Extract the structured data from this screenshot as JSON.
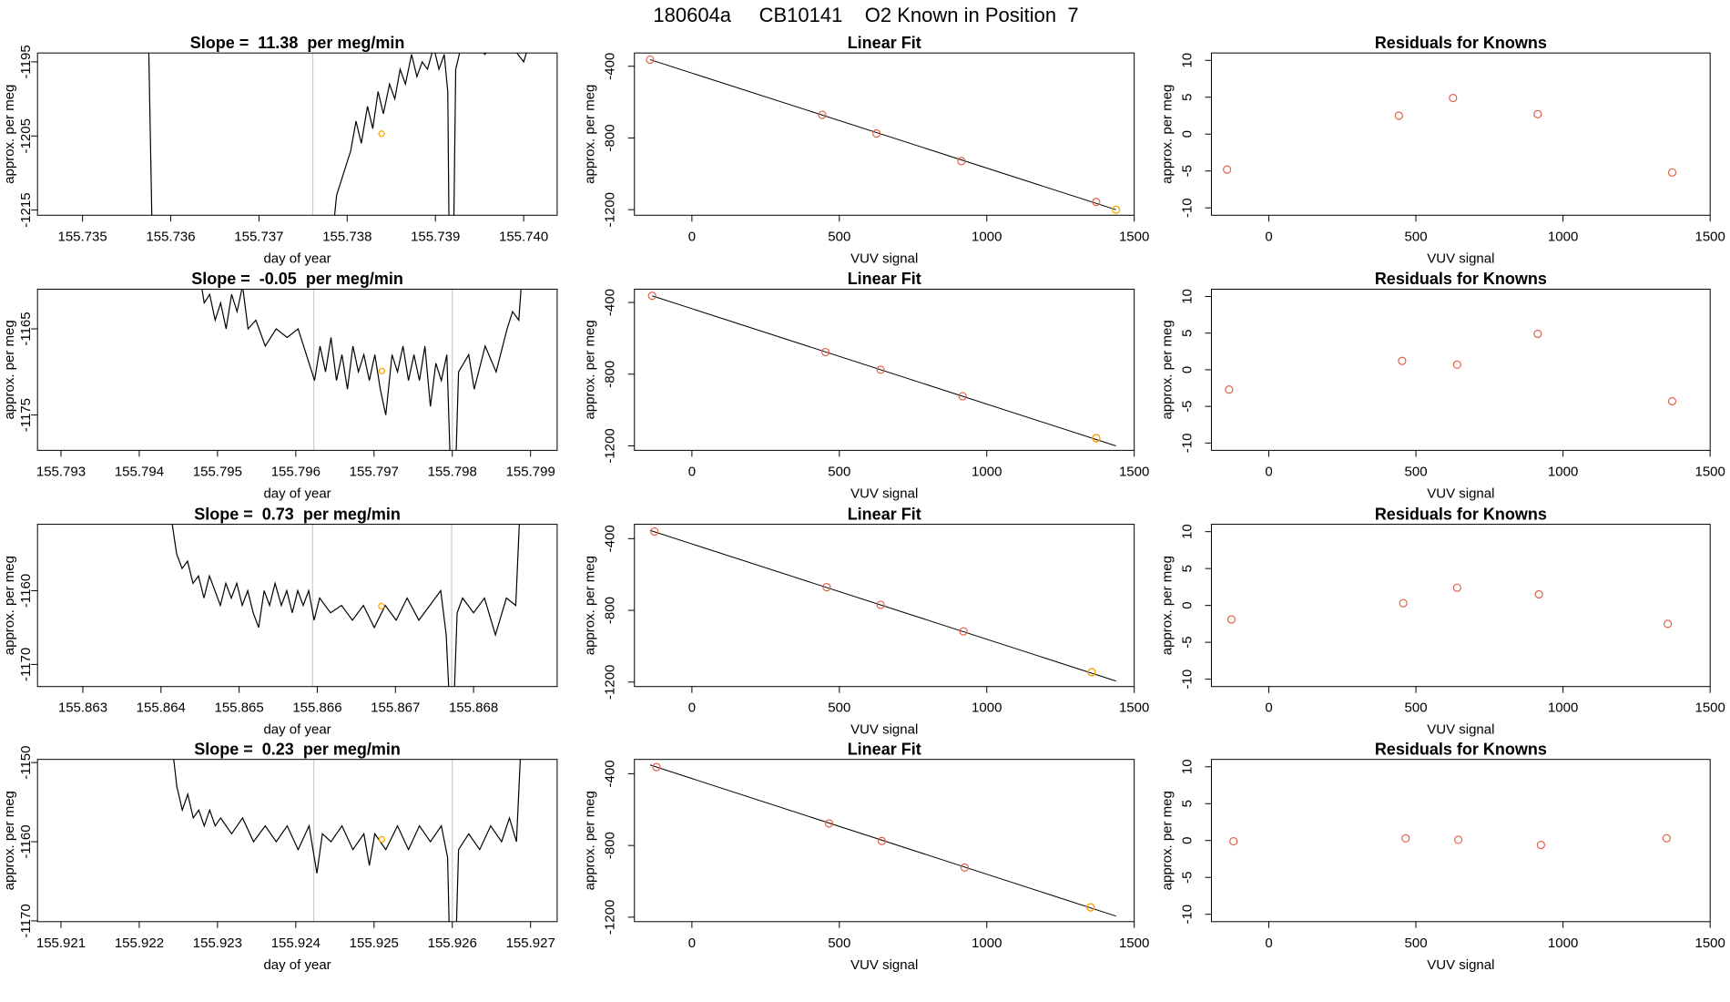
{
  "title": "180604a     CB10141    O2 Known in Position  7",
  "chart_data": [
    {
      "type": "line",
      "title": "Slope =  11.38  per meg/min",
      "xlabel": "day of year",
      "ylabel": "approx. per meg",
      "color": "#000000",
      "x": [
        155.73573,
        155.7358,
        155.73778,
        155.73788,
        155.73796,
        155.73804,
        155.7381,
        155.73816,
        155.73823,
        155.73829,
        155.73835,
        155.73841,
        155.73848,
        155.73854,
        155.7386,
        155.73866,
        155.73873,
        155.73879,
        155.73885,
        155.73891,
        155.73898,
        155.73904,
        155.7391,
        155.73914,
        155.73916,
        155.7392,
        155.73923,
        155.73929,
        155.73944,
        155.73956,
        155.73963,
        155.73981,
        155.74,
        155.74013
      ],
      "values": [
        -1180,
        -1225,
        -1225,
        -1213,
        -1210,
        -1207,
        -1203,
        -1206,
        -1201,
        -1204,
        -1199,
        -1202,
        -1198,
        -1200,
        -1196,
        -1198,
        -1194,
        -1197,
        -1195,
        -1196,
        -1193,
        -1196,
        -1194,
        -1199,
        -1225,
        -1225,
        -1196,
        -1193,
        -1192,
        -1194,
        -1193,
        -1192,
        -1195,
        -1190
      ],
      "xlim": [
        155.73449,
        155.74038
      ],
      "ylim": [
        -1215.7,
        -1193.8
      ],
      "xticks": [
        155.735,
        155.736,
        155.737,
        155.738,
        155.739,
        {
          "value": 155.74,
          "label": "155.740"
        }
      ],
      "yticks": [
        -1195,
        -1205,
        -1215
      ],
      "vlines": [
        155.73761
      ],
      "vline_color": "#cccccc",
      "highlight": {
        "x": 155.73839,
        "y": -1204.7,
        "color": "#ffa500"
      }
    },
    {
      "type": "scatter",
      "title": "Linear Fit",
      "xlabel": "VUV signal",
      "ylabel": "approx. per meg",
      "color": "#e0604a",
      "x": [
        -142,
        442,
        626,
        914,
        1371
      ],
      "values": [
        -363,
        -671,
        -775,
        -929,
        -1157
      ],
      "fit": {
        "x": [
          -142,
          1438
        ],
        "values": [
          -363,
          -1200
        ]
      },
      "xlim": [
        -195,
        1500
      ],
      "ylim": [
        -1231,
        -326
      ],
      "xticks": [
        0,
        500,
        1000,
        1500
      ],
      "yticks": [
        -400,
        -800,
        -1200
      ],
      "highlight": {
        "x": 1438,
        "y": -1200,
        "color": "#ffa500"
      }
    },
    {
      "type": "scatter",
      "title": "Residuals for Knowns",
      "xlabel": "VUV signal",
      "ylabel": "approx. per meg",
      "color": "#e0604a",
      "x": [
        -142,
        442,
        626,
        914,
        1371
      ],
      "values": [
        -4.8,
        2.5,
        4.9,
        2.7,
        -5.2
      ],
      "xlim": [
        -195,
        1500
      ],
      "ylim": [
        -11,
        11
      ],
      "xticks": [
        0,
        500,
        1000,
        1500
      ],
      "yticks": [
        -10,
        -5,
        0,
        5,
        10
      ]
    },
    {
      "type": "line",
      "title": "Slope =  -0.05  per meg/min",
      "xlabel": "day of year",
      "ylabel": "approx. per meg",
      "color": "#000000",
      "x": [
        155.79476,
        155.79483,
        155.7949,
        155.79497,
        155.79504,
        155.79511,
        155.79518,
        155.79525,
        155.79532,
        155.79539,
        155.79549,
        155.79561,
        155.79575,
        155.79589,
        155.79603,
        155.79617,
        155.79624,
        155.79631,
        155.79638,
        155.79645,
        155.79652,
        155.79659,
        155.79666,
        155.79673,
        155.7968,
        155.79687,
        155.79694,
        155.79701,
        155.79708,
        155.79715,
        155.79723,
        155.7973,
        155.79737,
        155.79744,
        155.79751,
        155.79758,
        155.79765,
        155.79772,
        155.79779,
        155.79786,
        155.79793,
        155.79799,
        155.79803,
        155.79808,
        155.79821,
        155.79828,
        155.79842,
        155.79856,
        155.7987,
        155.79877,
        155.79885,
        155.79892
      ],
      "values": [
        -1158,
        -1162,
        -1161,
        -1164,
        -1162,
        -1165,
        -1161,
        -1163,
        -1160,
        -1165,
        -1164,
        -1167,
        -1165,
        -1166,
        -1165,
        -1169,
        -1171,
        -1167,
        -1170,
        -1166,
        -1171,
        -1168,
        -1172,
        -1167,
        -1170,
        -1168,
        -1171,
        -1168,
        -1172,
        -1175,
        -1168,
        -1170,
        -1167,
        -1171,
        -1168,
        -1171,
        -1167,
        -1174,
        -1169,
        -1171,
        -1168,
        -1185,
        -1185,
        -1170,
        -1168,
        -1172,
        -1167,
        -1170,
        -1165,
        -1163,
        -1164,
        -1155
      ],
      "xlim": [
        155.7927,
        155.79934
      ],
      "ylim": [
        -1179.1,
        -1160.4
      ],
      "xticks": [
        155.793,
        155.794,
        155.795,
        155.796,
        155.797,
        155.798,
        155.799
      ],
      "yticks": [
        -1165,
        -1175
      ],
      "vlines": [
        155.79623,
        155.798
      ],
      "vline_color": "#cccccc",
      "highlight": {
        "x": 155.7971,
        "y": -1169.9,
        "color": "#ffa500"
      }
    },
    {
      "type": "scatter",
      "title": "Linear Fit",
      "xlabel": "VUV signal",
      "ylabel": "approx. per meg",
      "color": "#e0604a",
      "x": [
        -135,
        453,
        640,
        918,
        1371
      ],
      "values": [
        -363,
        -677,
        -775,
        -923,
        -1157
      ],
      "fit": {
        "x": [
          -135,
          1438
        ],
        "values": [
          -363,
          -1200
        ]
      },
      "xlim": [
        -195,
        1500
      ],
      "ylim": [
        -1225,
        -326
      ],
      "xticks": [
        0,
        500,
        1000,
        1500
      ],
      "yticks": [
        -400,
        -800,
        -1200
      ],
      "highlight": {
        "x": 1371,
        "y": -1157,
        "color": "#ffa500"
      }
    },
    {
      "type": "scatter",
      "title": "Residuals for Knowns",
      "xlabel": "VUV signal",
      "ylabel": "approx. per meg",
      "color": "#e0604a",
      "x": [
        -135,
        453,
        640,
        914,
        1371
      ],
      "values": [
        -2.7,
        1.2,
        0.7,
        4.9,
        -4.3
      ],
      "xlim": [
        -195,
        1500
      ],
      "ylim": [
        -11,
        11
      ],
      "xticks": [
        0,
        500,
        1000,
        1500
      ],
      "yticks": [
        -10,
        -5,
        0,
        5,
        10
      ]
    },
    {
      "type": "line",
      "title": "Slope =  0.73  per meg/min",
      "xlabel": "day of year",
      "ylabel": "approx. per meg",
      "color": "#000000",
      "x": [
        155.86413,
        155.8642,
        155.86427,
        155.86434,
        155.86441,
        155.86448,
        155.86455,
        155.86462,
        155.86469,
        155.86476,
        155.86483,
        155.8649,
        155.86497,
        155.86504,
        155.86511,
        155.86518,
        155.86525,
        155.86532,
        155.86539,
        155.86546,
        155.86554,
        155.86561,
        155.86568,
        155.86575,
        155.86582,
        155.86589,
        155.86596,
        155.86603,
        155.86617,
        155.86631,
        155.86645,
        155.86659,
        155.86673,
        155.86687,
        155.86701,
        155.86715,
        155.8673,
        155.86744,
        155.86758,
        155.86765,
        155.86769,
        155.86775,
        155.86779,
        155.86786,
        155.868,
        155.86814,
        155.86828,
        155.86842,
        155.86854,
        155.86861
      ],
      "values": [
        -1150,
        -1155,
        -1157,
        -1156,
        -1159,
        -1158,
        -1161,
        -1158,
        -1160,
        -1162,
        -1159,
        -1161,
        -1159,
        -1162,
        -1160,
        -1163,
        -1165,
        -1160,
        -1162,
        -1159,
        -1162,
        -1160,
        -1163,
        -1160,
        -1162,
        -1160,
        -1164,
        -1161,
        -1163,
        -1162,
        -1164,
        -1162,
        -1165,
        -1162,
        -1164,
        -1161,
        -1164,
        -1162,
        -1160,
        -1166,
        -1175,
        -1175,
        -1163,
        -1161,
        -1163,
        -1161,
        -1166,
        -1161,
        -1162,
        -1145
      ],
      "xlim": [
        155.86242,
        155.86907
      ],
      "ylim": [
        -1173,
        -1151
      ],
      "xticks": [
        155.863,
        155.864,
        155.865,
        155.866,
        155.867,
        155.868
      ],
      "yticks": [
        -1160,
        -1170
      ],
      "vlines": [
        155.86594,
        155.86772
      ],
      "vline_color": "#cccccc",
      "highlight": {
        "x": 155.86682,
        "y": -1162.1,
        "color": "#ffa500"
      }
    },
    {
      "type": "scatter",
      "title": "Linear Fit",
      "xlabel": "VUV signal",
      "ylabel": "approx. per meg",
      "color": "#e0604a",
      "x": [
        -127,
        457,
        640,
        921,
        1356
      ],
      "values": [
        -360,
        -671,
        -769,
        -917,
        -1145
      ],
      "fit": {
        "x": [
          -142,
          1438
        ],
        "values": [
          -354,
          -1194
        ]
      },
      "xlim": [
        -195,
        1500
      ],
      "ylim": [
        -1225,
        -320
      ],
      "xticks": [
        0,
        500,
        1000,
        1500
      ],
      "yticks": [
        -400,
        -800,
        -1200
      ],
      "highlight": {
        "x": 1356,
        "y": -1145,
        "color": "#ffa500"
      }
    },
    {
      "type": "scatter",
      "title": "Residuals for Knowns",
      "xlabel": "VUV signal",
      "ylabel": "approx. per meg",
      "color": "#e0604a",
      "x": [
        -127,
        457,
        640,
        918,
        1356
      ],
      "values": [
        -1.9,
        0.3,
        2.4,
        1.5,
        -2.5
      ],
      "xlim": [
        -195,
        1500
      ],
      "ylim": [
        -11,
        11
      ],
      "xticks": [
        0,
        500,
        1000,
        1500
      ],
      "yticks": [
        -10,
        -5,
        0,
        5,
        10
      ]
    },
    {
      "type": "line",
      "title": "Slope =  0.23  per meg/min",
      "xlabel": "day of year",
      "ylabel": "approx. per meg",
      "color": "#000000",
      "x": [
        155.92241,
        155.92248,
        155.92255,
        155.92262,
        155.92269,
        155.92276,
        155.92283,
        155.9229,
        155.92297,
        155.92304,
        155.92318,
        155.92332,
        155.92346,
        155.92361,
        155.92375,
        155.92389,
        155.92403,
        155.92417,
        155.92427,
        155.92434,
        155.92445,
        155.92459,
        155.92473,
        155.92487,
        155.92494,
        155.92501,
        155.92515,
        155.9253,
        155.92544,
        155.92558,
        155.92572,
        155.92586,
        155.92594,
        155.92597,
        155.92604,
        155.92608,
        155.92621,
        155.92635,
        155.92649,
        155.92663,
        155.92673,
        155.92682,
        155.92689
      ],
      "values": [
        -1147,
        -1153,
        -1156,
        -1154,
        -1157,
        -1156,
        -1158,
        -1156,
        -1158,
        -1157,
        -1159,
        -1157,
        -1160,
        -1158,
        -1160,
        -1158,
        -1161,
        -1158,
        -1164,
        -1159,
        -1160,
        -1158,
        -1161,
        -1159,
        -1163,
        -1159,
        -1161,
        -1158,
        -1161,
        -1158,
        -1160,
        -1158,
        -1162,
        -1175,
        -1175,
        -1161,
        -1159,
        -1161,
        -1158,
        -1160,
        -1157,
        -1160,
        -1145
      ],
      "xlim": [
        155.9207,
        155.92734
      ],
      "ylim": [
        -1170.1,
        -1149.6
      ],
      "xticks": [
        155.921,
        155.922,
        155.923,
        155.924,
        155.925,
        155.926,
        155.927
      ],
      "yticks": [
        -1150,
        -1160,
        -1170
      ],
      "vlines": [
        155.92423,
        155.926
      ],
      "vline_color": "#cccccc",
      "highlight": {
        "x": 155.9251,
        "y": -1159.7,
        "color": "#ffa500"
      }
    },
    {
      "type": "scatter",
      "title": "Linear Fit",
      "xlabel": "VUV signal",
      "ylabel": "approx. per meg",
      "color": "#e0604a",
      "x": [
        -120,
        465,
        644,
        925,
        1352
      ],
      "values": [
        -363,
        -677,
        -775,
        -923,
        -1145
      ],
      "fit": {
        "x": [
          -142,
          1438
        ],
        "values": [
          -351,
          -1194
        ]
      },
      "xlim": [
        -195,
        1500
      ],
      "ylim": [
        -1225,
        -320
      ],
      "xticks": [
        0,
        500,
        1000,
        1500
      ],
      "yticks": [
        -400,
        -800,
        -1200
      ],
      "highlight": {
        "x": 1352,
        "y": -1145,
        "color": "#ffa500"
      }
    },
    {
      "type": "scatter",
      "title": "Residuals for Knowns",
      "xlabel": "VUV signal",
      "ylabel": "approx. per meg",
      "color": "#e0604a",
      "x": [
        -120,
        465,
        644,
        925,
        1352
      ],
      "values": [
        -0.1,
        0.3,
        0.1,
        -0.6,
        0.3
      ],
      "xlim": [
        -195,
        1500
      ],
      "ylim": [
        -11,
        11
      ],
      "xticks": [
        0,
        500,
        1000,
        1500
      ],
      "yticks": [
        -10,
        -5,
        0,
        5,
        10
      ]
    }
  ]
}
